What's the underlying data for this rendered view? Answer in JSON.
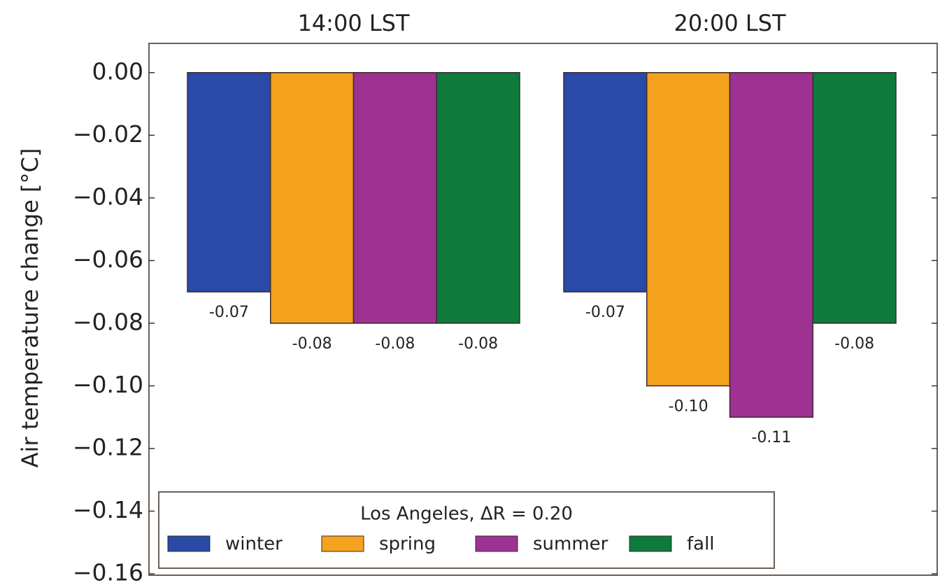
{
  "chart_data": {
    "type": "bar",
    "categories": [
      "14:00 LST",
      "20:00 LST"
    ],
    "ylabel": "Air temperature change [°C]",
    "ylim": [
      -0.16,
      0.01
    ],
    "yticks": [
      {
        "value": 0,
        "label": "0.00"
      },
      {
        "value": -0.02,
        "label": "−0.02"
      },
      {
        "value": -0.04,
        "label": "−0.04"
      },
      {
        "value": -0.06,
        "label": "−0.06"
      },
      {
        "value": -0.08,
        "label": "−0.08"
      },
      {
        "value": -0.1,
        "label": "−0.10"
      },
      {
        "value": -0.12,
        "label": "−0.12"
      },
      {
        "value": -0.14,
        "label": "−0.14"
      },
      {
        "value": -0.16,
        "label": "−0.16"
      }
    ],
    "legend_title": "Los Angeles, ΔR = 0.20",
    "legend_position": "lower left",
    "series": [
      {
        "name": "winter",
        "color": "#2a4aa8",
        "values": [
          -0.07,
          -0.07
        ],
        "value_labels": [
          "-0.07",
          "-0.07"
        ]
      },
      {
        "name": "spring",
        "color": "#f5a21e",
        "values": [
          -0.08,
          -0.1
        ],
        "value_labels": [
          "-0.08",
          "-0.10"
        ]
      },
      {
        "name": "summer",
        "color": "#9e3292",
        "values": [
          -0.08,
          -0.11
        ],
        "value_labels": [
          "-0.08",
          "-0.11"
        ]
      },
      {
        "name": "fall",
        "color": "#0e7a3c",
        "values": [
          -0.08,
          -0.08
        ],
        "value_labels": [
          "-0.08",
          "-0.08"
        ]
      }
    ]
  }
}
